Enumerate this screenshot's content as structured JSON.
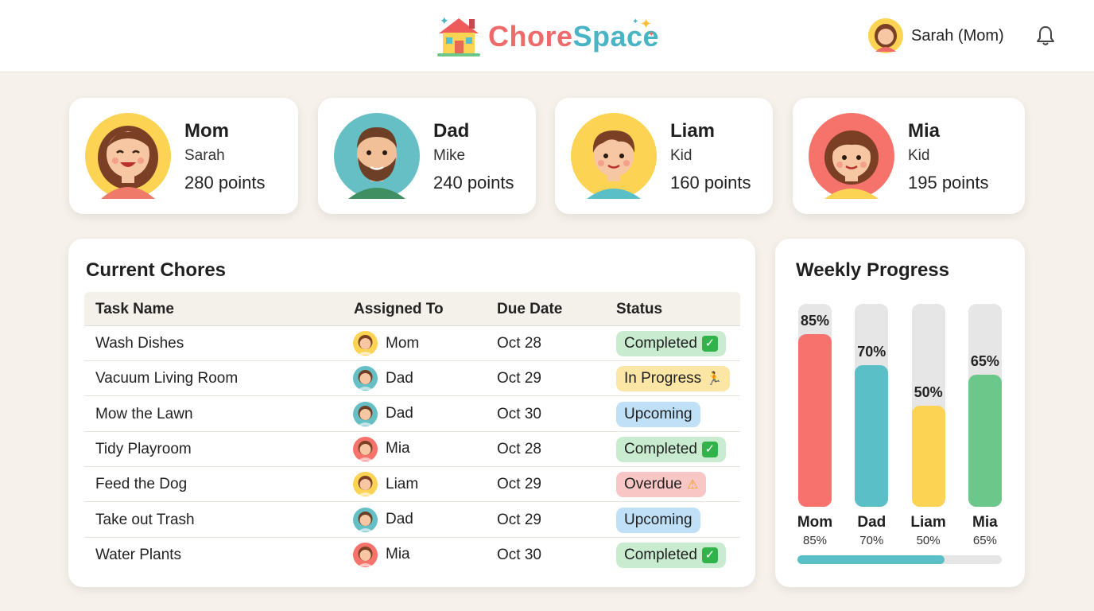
{
  "header": {
    "brand_part1": "Chore",
    "brand_part2": "Space",
    "user_name": "Sarah (Mom)"
  },
  "members": [
    {
      "name": "Mom",
      "role": "Sarah",
      "points": "280 points",
      "avatar": "mom"
    },
    {
      "name": "Dad",
      "role": "Mike",
      "points": "240 points",
      "avatar": "dad"
    },
    {
      "name": "Liam",
      "role": "Kid",
      "points": "160 points",
      "avatar": "liam"
    },
    {
      "name": "Mia",
      "role": "Kid",
      "points": "195 points",
      "avatar": "mia"
    }
  ],
  "chores": {
    "title": "Current Chores",
    "columns": [
      "Task Name",
      "Assigned To",
      "Due Date",
      "Status"
    ],
    "rows": [
      {
        "task": "Wash Dishes",
        "assignee": "Mom",
        "due": "Oct 28",
        "status": "Completed",
        "status_type": "completed"
      },
      {
        "task": "Vacuum Living Room",
        "assignee": "Dad",
        "due": "Oct 29",
        "status": "In Progress",
        "status_type": "in-progress"
      },
      {
        "task": "Mow the Lawn",
        "assignee": "Dad",
        "due": "Oct 30",
        "status": "Upcoming",
        "status_type": "upcoming"
      },
      {
        "task": "Tidy Playroom",
        "assignee": "Mia",
        "due": "Oct 28",
        "status": "Completed",
        "status_type": "completed"
      },
      {
        "task": "Feed the Dog",
        "assignee": "Liam",
        "due": "Oct 29",
        "status": "Overdue",
        "status_type": "overdue"
      },
      {
        "task": "Take out Trash",
        "assignee": "Dad",
        "due": "Oct 29",
        "status": "Upcoming",
        "status_type": "upcoming"
      },
      {
        "task": "Water Plants",
        "assignee": "Mia",
        "due": "Oct 30",
        "status": "Completed",
        "status_type": "completed"
      }
    ]
  },
  "progress": {
    "title": "Weekly Progress",
    "overall_fraction": 0.72
  },
  "chart_data": {
    "type": "bar",
    "title": "Weekly Progress",
    "categories": [
      "Mom",
      "Dad",
      "Liam",
      "Mia"
    ],
    "values": [
      85,
      70,
      50,
      65
    ],
    "value_labels": [
      "85%",
      "70%",
      "50%",
      "65%"
    ],
    "colors": [
      "#f8726d",
      "#5bbfc8",
      "#fcd353",
      "#6cc78a"
    ],
    "ylim": [
      0,
      100
    ],
    "xlabel": "",
    "ylabel": ""
  },
  "colors": {
    "completed_bg": "#c9ecd0",
    "in_progress_bg": "#fbe6a6",
    "upcoming_bg": "#bfe0f7",
    "overdue_bg": "#f8c6c4"
  }
}
